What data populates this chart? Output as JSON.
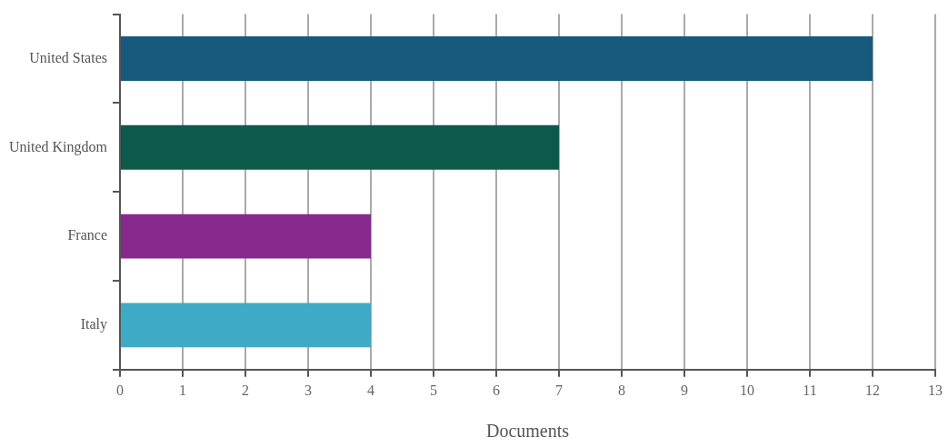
{
  "chart_data": {
    "type": "bar",
    "orientation": "horizontal",
    "categories": [
      "United States",
      "United Kingdom",
      "France",
      "Italy"
    ],
    "values": [
      12,
      7,
      4,
      4
    ],
    "colors": [
      "#175a7e",
      "#0d5a4b",
      "#87288c",
      "#3faac5"
    ],
    "xlabel": "Documents",
    "xlim": [
      0,
      13
    ],
    "xticks": [
      0,
      1,
      2,
      3,
      4,
      5,
      6,
      7,
      8,
      9,
      10,
      11,
      12,
      13
    ],
    "grid": "x",
    "legend": false
  }
}
